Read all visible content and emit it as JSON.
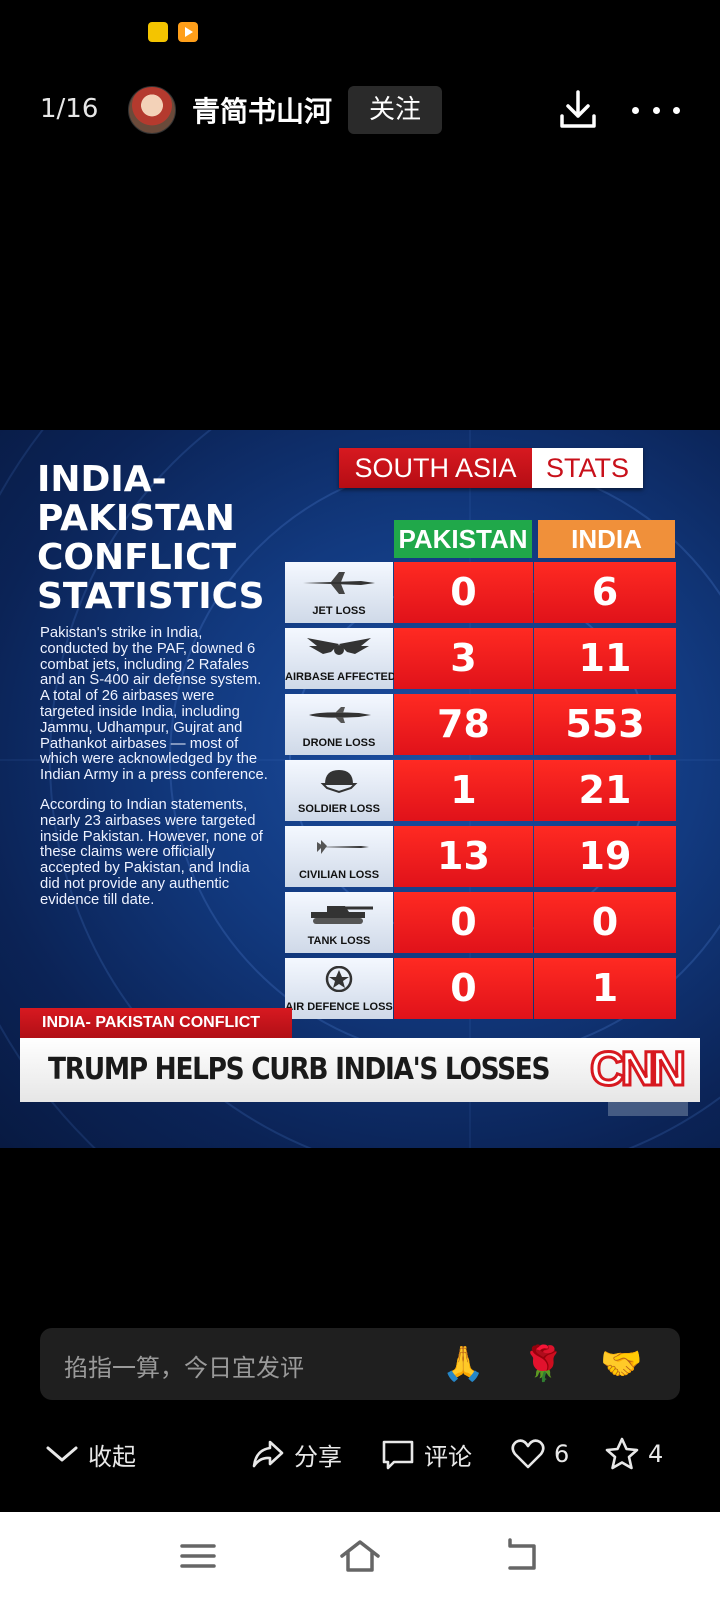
{
  "top_bar": {
    "page_counter": "1/16",
    "author": "青简书山河",
    "follow_label": "关注"
  },
  "infographic": {
    "title": "INDIA-\nPAKISTAN\nCONFLICT\nSTATISTICS",
    "description_1": "Pakistan's strike in India, conducted by the PAF, downed 6 combat jets, including 2 Rafales and an S-400 air defense system. A total of 26 airbases were targeted inside India, including Jammu, Udhampur, Gujrat and Pathankot airbases — most of which were acknowledged by the Indian Army in a press conference.",
    "description_2": "According to Indian statements, nearly 23 airbases were targeted inside Pakistan. However, none of these claims were officially accepted by Pakistan, and India did not provide any authentic evidence till date.",
    "banner_left": "SOUTH ASIA",
    "banner_right": "STATS",
    "col_pakistan": "PAKISTAN",
    "col_india": "INDIA",
    "rows": [
      {
        "label": "JET LOSS",
        "pakistan": "0",
        "india": "6"
      },
      {
        "label": "AIRBASE AFFECTED",
        "pakistan": "3",
        "india": "11"
      },
      {
        "label": "DRONE LOSS",
        "pakistan": "78",
        "india": "553"
      },
      {
        "label": "SOLDIER LOSS",
        "pakistan": "1",
        "india": "21"
      },
      {
        "label": "CIVILIAN LOSS",
        "pakistan": "13",
        "india": "19"
      },
      {
        "label": "TANK LOSS",
        "pakistan": "0",
        "india": "0"
      },
      {
        "label": "AIR DEFENCE LOSS",
        "pakistan": "0",
        "india": "1"
      }
    ],
    "ticker_label": "INDIA- PAKISTAN CONFLICT",
    "headline": "TRUMP HELPS CURB INDIA'S LOSSES",
    "logo_text": "CNN"
  },
  "comment": {
    "placeholder": "掐指一算，今日宜发评",
    "emojis": [
      "🙏",
      "🌹",
      "🤝"
    ]
  },
  "actions": {
    "collapse_label": "收起",
    "share_label": "分享",
    "comment_label": "评论",
    "like_count": "6",
    "favorite_count": "4"
  }
}
